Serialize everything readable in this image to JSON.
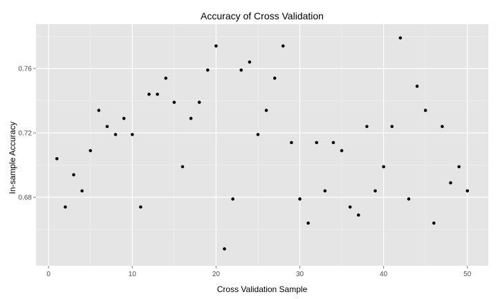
{
  "chart_data": {
    "type": "scatter",
    "title": "Accuracy of Cross Validation",
    "xlabel": "Cross Validation Sample",
    "ylabel": "In-sample Accuracy",
    "xlim": [
      -1.5,
      52.5
    ],
    "ylim": [
      0.6375,
      0.7875
    ],
    "x_ticks": [
      0,
      10,
      20,
      30,
      40,
      50
    ],
    "y_ticks": [
      0.68,
      0.72,
      0.76
    ],
    "x_tick_labels": [
      "0",
      "10",
      "20",
      "30",
      "40",
      "50"
    ],
    "y_tick_labels": [
      "0.68",
      "0.72",
      "0.76"
    ],
    "grid": true,
    "panel_background": "#e5e5e5",
    "grid_color": "#ffffff",
    "point_color": "#000000",
    "series": [
      {
        "x": [
          1,
          2,
          3,
          4,
          5,
          6,
          7,
          8,
          9,
          10,
          11,
          12,
          13,
          14,
          15,
          16,
          17,
          18,
          19,
          20,
          21,
          22,
          23,
          24,
          25,
          26,
          27,
          28,
          29,
          30,
          31,
          32,
          33,
          34,
          35,
          36,
          37,
          38,
          39,
          40,
          41,
          42,
          43,
          44,
          45,
          46,
          47,
          48,
          49,
          50
        ],
        "y": [
          0.704,
          0.674,
          0.694,
          0.684,
          0.709,
          0.734,
          0.724,
          0.719,
          0.729,
          0.719,
          0.674,
          0.744,
          0.744,
          0.754,
          0.739,
          0.699,
          0.729,
          0.739,
          0.759,
          0.774,
          0.648,
          0.679,
          0.759,
          0.764,
          0.719,
          0.734,
          0.754,
          0.774,
          0.714,
          0.679,
          0.664,
          0.714,
          0.684,
          0.714,
          0.709,
          0.674,
          0.669,
          0.724,
          0.684,
          0.699,
          0.724,
          0.779,
          0.679,
          0.749,
          0.734,
          0.664,
          0.724,
          0.689,
          0.699,
          0.684
        ]
      }
    ]
  }
}
